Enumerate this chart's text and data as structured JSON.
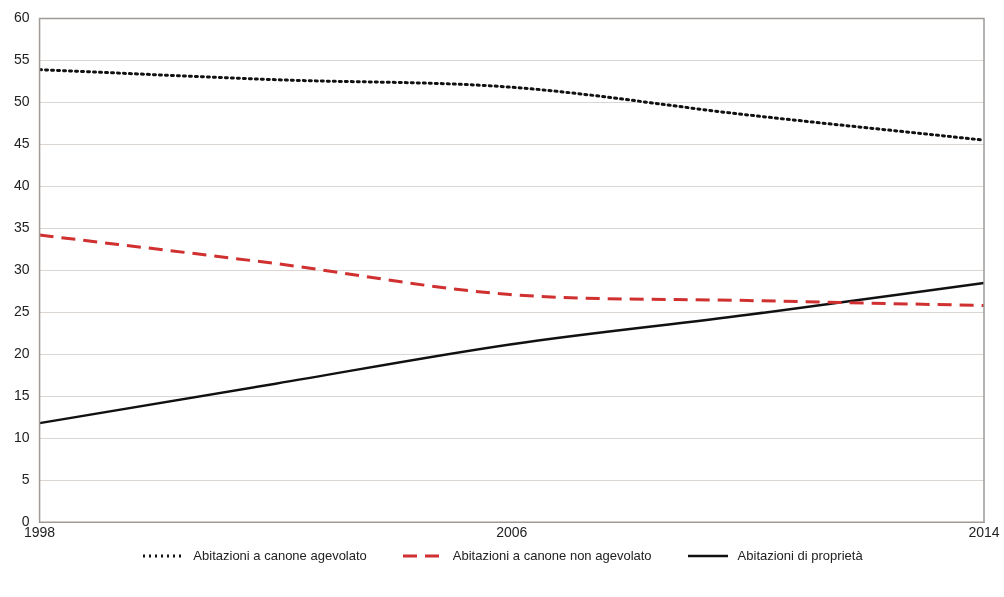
{
  "chart_data": {
    "type": "line",
    "x": [
      1998,
      2002,
      2006,
      2010,
      2014
    ],
    "xlim": [
      1998,
      2014
    ],
    "xticks": [
      1998,
      2006,
      2014
    ],
    "ylim": [
      0,
      60
    ],
    "yticks": [
      0,
      5,
      10,
      15,
      20,
      25,
      30,
      35,
      40,
      45,
      50,
      55,
      60
    ],
    "grid": "y",
    "legend": "bottom",
    "marker": "none",
    "series": [
      {
        "name": "Abitazioni a canone agevolato",
        "color": "#111111",
        "line_style": "dotted",
        "values": [
          53.9,
          52.7,
          51.8,
          48.5,
          45.5
        ]
      },
      {
        "name": "Abitazioni a canone non agevolato",
        "color": "#d03030",
        "line_style": "dashed",
        "values": [
          34.2,
          30.8,
          27.1,
          26.4,
          25.8
        ]
      },
      {
        "name": "Abitazioni di proprietà",
        "color": "#111111",
        "line_style": "solid",
        "values": [
          11.8,
          16.5,
          21.2,
          24.7,
          28.5
        ]
      }
    ]
  }
}
